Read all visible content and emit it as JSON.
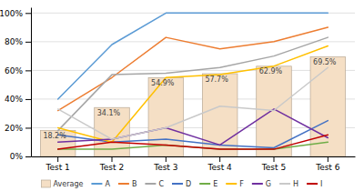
{
  "chart_data": {
    "type": "bar",
    "categories": [
      "Test 1",
      "Test 2",
      "Test 3",
      "Test 4",
      "Test 5",
      "Test 6"
    ],
    "series": [
      {
        "name": "Average",
        "type": "bar",
        "color": "#f5dfc5",
        "values": [
          18.2,
          34.1,
          54.9,
          57.7,
          62.9,
          69.5
        ],
        "value_labels": [
          "18.2%",
          "34.1%",
          "54.9%",
          "57.7%",
          "62.9%",
          "69.5%"
        ]
      },
      {
        "name": "A",
        "type": "line",
        "color": "#5b9bd5",
        "values": [
          40,
          78,
          100,
          100,
          100,
          100
        ]
      },
      {
        "name": "B",
        "type": "line",
        "color": "#ed7d31",
        "values": [
          32,
          55,
          83,
          75,
          80,
          90
        ]
      },
      {
        "name": "C",
        "type": "line",
        "color": "#a5a5a5",
        "values": [
          18,
          57,
          58,
          62,
          70,
          83
        ]
      },
      {
        "name": "D",
        "type": "line",
        "color": "#4472c4",
        "values": [
          15,
          10,
          12,
          8,
          6,
          25
        ]
      },
      {
        "name": "E",
        "type": "line",
        "color": "#70ad47",
        "values": [
          5,
          5,
          8,
          5,
          5,
          10
        ]
      },
      {
        "name": "F",
        "type": "line",
        "color": "#ffc000",
        "values": [
          20,
          10,
          55,
          57,
          63,
          77
        ]
      },
      {
        "name": "G",
        "type": "line",
        "color": "#7030a0",
        "values": [
          10,
          12,
          20,
          8,
          33,
          13
        ]
      },
      {
        "name": "H",
        "type": "line",
        "color": "#c9c9c9",
        "values": [
          33,
          12,
          20,
          35,
          32,
          62
        ]
      },
      {
        "name": "I",
        "type": "line",
        "color": "#c00000",
        "values": [
          5,
          10,
          8,
          5,
          5,
          15
        ]
      }
    ],
    "ylim": [
      0,
      104
    ],
    "yticks": [
      {
        "value": 0,
        "label": "0%"
      },
      {
        "value": 20,
        "label": "20%"
      },
      {
        "value": 40,
        "label": "40%"
      },
      {
        "value": 60,
        "label": "60%"
      },
      {
        "value": 80,
        "label": "80%"
      },
      {
        "value": 100,
        "label": "100%"
      }
    ],
    "grid": true,
    "legend": "bottom",
    "data_labels": true
  }
}
